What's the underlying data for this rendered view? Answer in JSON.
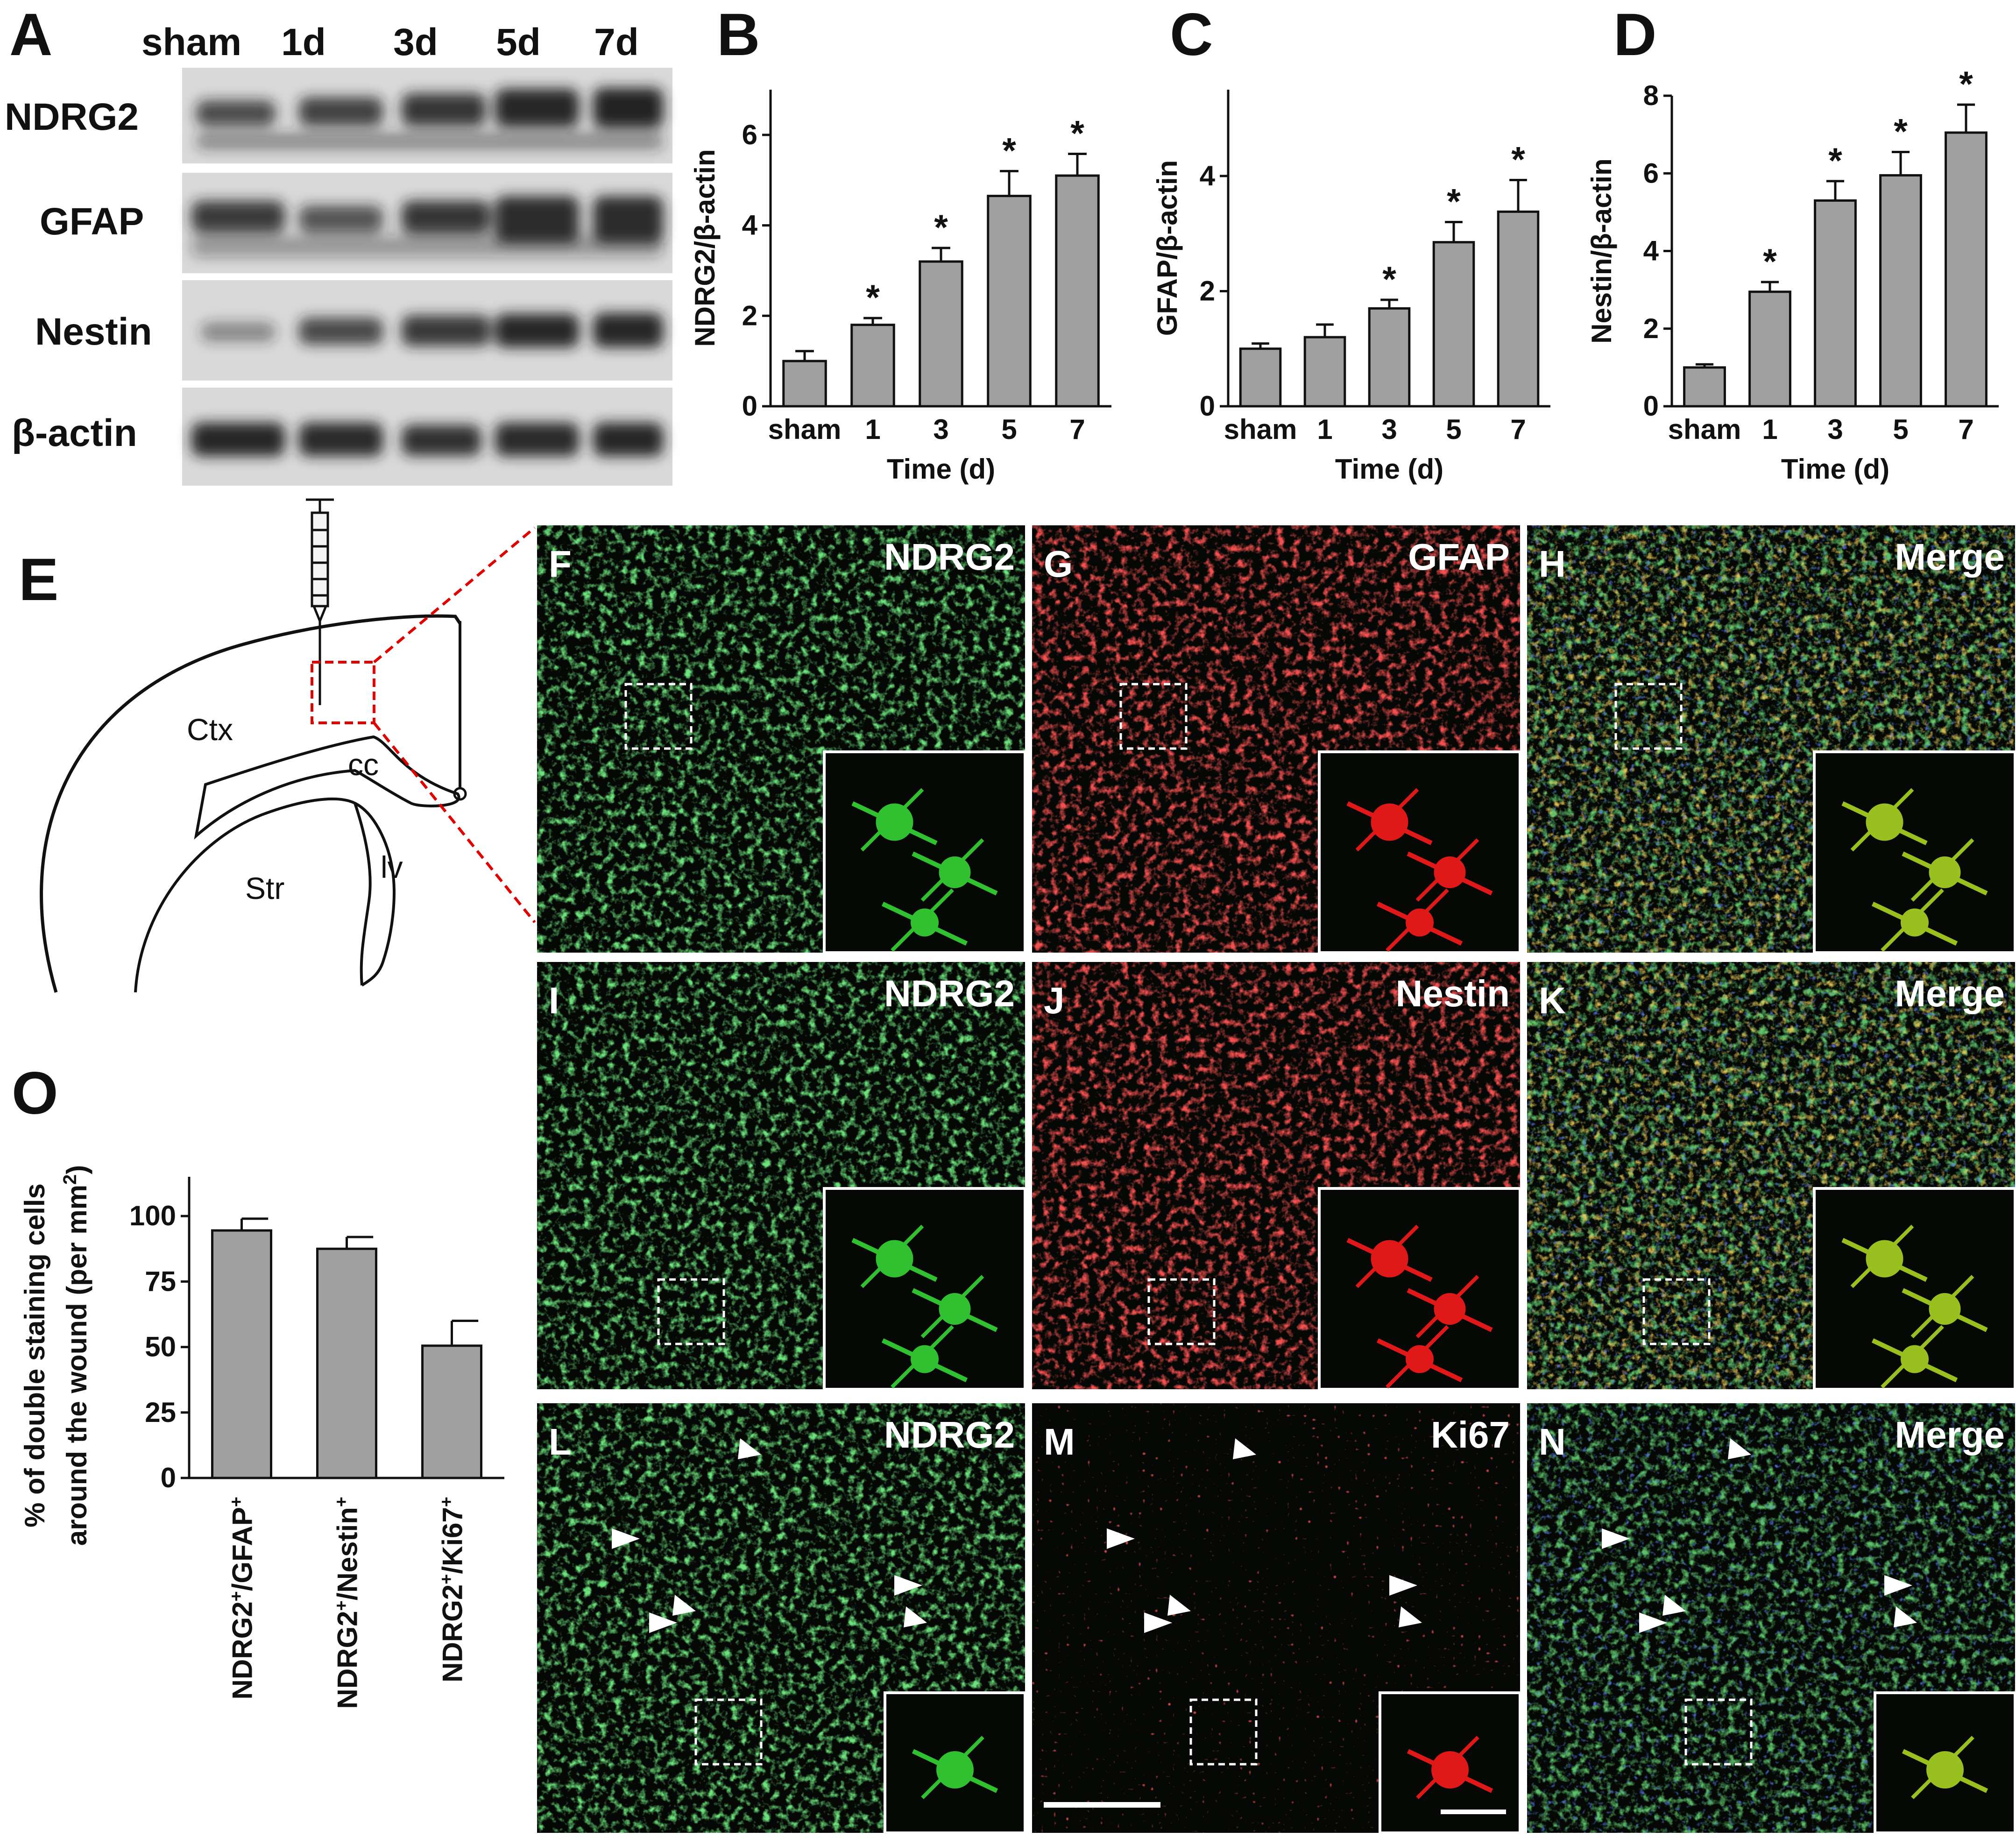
{
  "panel_letters": [
    "A",
    "B",
    "C",
    "D",
    "E",
    "F",
    "G",
    "H",
    "I",
    "J",
    "K",
    "L",
    "M",
    "N",
    "O"
  ],
  "western_blot": {
    "lanes": [
      "sham",
      "1d",
      "3d",
      "5d",
      "7d"
    ],
    "rows": [
      "NDRG2",
      "GFAP",
      "Nestin",
      "β-actin"
    ]
  },
  "schematic_labels": [
    "Ctx",
    "cc",
    "Str",
    "lv"
  ],
  "micrograph_labels": {
    "F": "NDRG2",
    "G": "GFAP",
    "H": "Merge",
    "I": "NDRG2",
    "J": "Nestin",
    "K": "Merge",
    "L": "NDRG2",
    "M": "Ki67",
    "N": "Merge"
  },
  "colors": {
    "bar_fill": "#a0a0a0",
    "green_channel": "#22a02a",
    "red_channel": "#d01818",
    "dashed_line": "#e00000"
  },
  "chart_data": [
    {
      "panel": "B",
      "type": "bar",
      "categories": [
        "sham",
        "1",
        "3",
        "5",
        "7"
      ],
      "values": [
        1.0,
        1.8,
        3.2,
        4.65,
        5.1
      ],
      "errors": [
        0.22,
        0.15,
        0.3,
        0.55,
        0.48
      ],
      "significant": [
        false,
        true,
        true,
        true,
        true
      ],
      "marker": "*",
      "ylabel": "NDRG2/β-actin",
      "xlabel": "Time (d)",
      "ylim": [
        0,
        7
      ],
      "yticks": [
        0,
        2,
        4,
        6
      ]
    },
    {
      "panel": "C",
      "type": "bar",
      "categories": [
        "sham",
        "1",
        "3",
        "5",
        "7"
      ],
      "values": [
        1.0,
        1.2,
        1.7,
        2.85,
        3.38
      ],
      "errors": [
        0.09,
        0.22,
        0.15,
        0.35,
        0.55
      ],
      "significant": [
        false,
        false,
        true,
        true,
        true
      ],
      "marker": "*",
      "ylabel": "GFAP/β-actin",
      "xlabel": "Time (d)",
      "ylim": [
        0,
        5.5
      ],
      "yticks": [
        0,
        2,
        4
      ]
    },
    {
      "panel": "D",
      "type": "bar",
      "categories": [
        "sham",
        "1",
        "3",
        "5",
        "7"
      ],
      "values": [
        1.0,
        2.95,
        5.3,
        5.95,
        7.05
      ],
      "errors": [
        0.08,
        0.25,
        0.5,
        0.6,
        0.72
      ],
      "significant": [
        false,
        true,
        true,
        true,
        true
      ],
      "marker": "*",
      "ylabel": "Nestin/β-actin",
      "xlabel": "Time (d)",
      "ylim": [
        0,
        8
      ],
      "yticks": [
        0,
        2,
        4,
        6,
        8
      ]
    },
    {
      "panel": "O",
      "type": "bar",
      "categories": [
        {
          "base": "NDRG2",
          "sup1": "+",
          "mid": "/GFAP",
          "sup2": "+"
        },
        {
          "base": "NDRG2",
          "sup1": "+",
          "mid": "/Nestin",
          "sup2": "+"
        },
        {
          "base": "NDRG2",
          "sup1": "+",
          "mid": "/Ki67",
          "sup2": "+"
        }
      ],
      "values": [
        94.5,
        87.5,
        50.5
      ],
      "errors": [
        4.5,
        4.5,
        9.5
      ],
      "ylabel_line1": "% of double staining cells",
      "ylabel_line2": "around the wound (per mm",
      "ylabel_sup": "2",
      "ylabel_close": ")",
      "ylim": [
        0,
        115
      ],
      "yticks": [
        0,
        25,
        50,
        75,
        100
      ]
    }
  ]
}
